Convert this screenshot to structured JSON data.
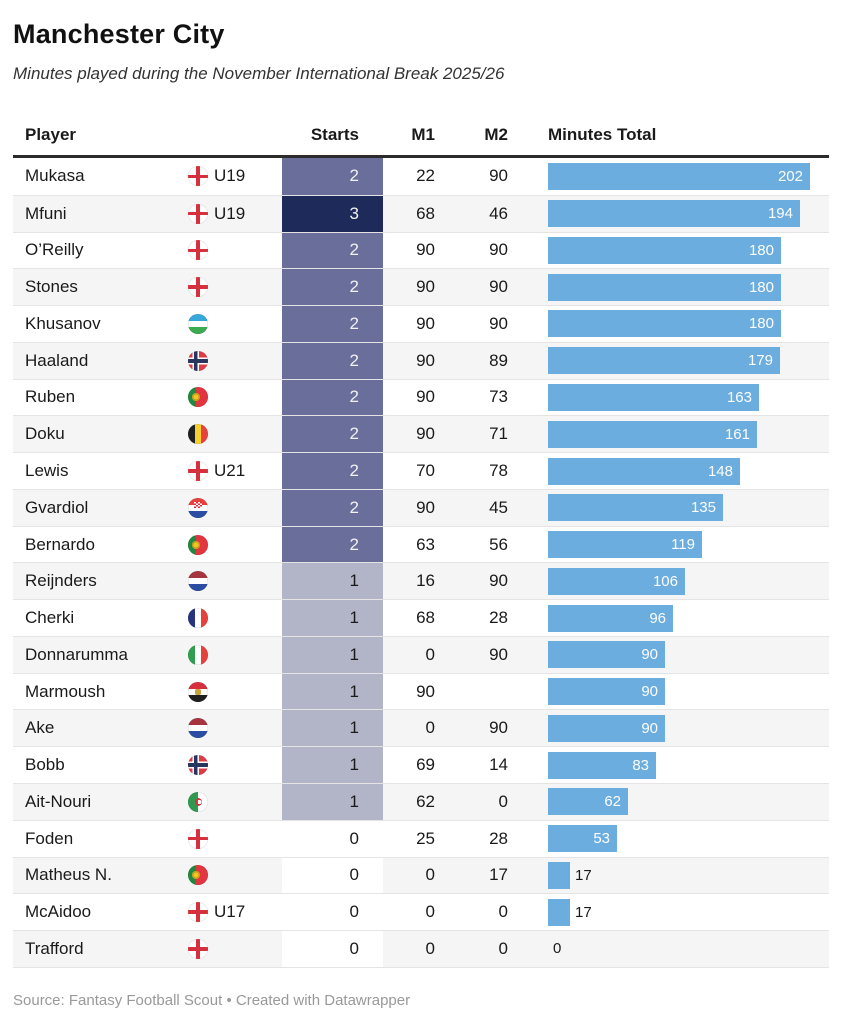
{
  "header": {
    "title": "Manchester City",
    "subtitle": "Minutes played during the November International Break 2025/26"
  },
  "columns": {
    "player": "Player",
    "starts": "Starts",
    "m1": "M1",
    "m2": "M2",
    "minutes_total": "Minutes Total"
  },
  "chart_data": {
    "type": "table",
    "title": "Manchester City",
    "subtitle": "Minutes played during the November International Break 2025/26",
    "columns": [
      "Player",
      "Starts",
      "M1",
      "M2",
      "Minutes Total"
    ],
    "bar_field": "total",
    "bar_max_value": 202,
    "bar_color": "#6badde",
    "row_stripe_color": "#f5f5f5",
    "starts_heatmap": {
      "0": "#ffffff",
      "1": "#b2b4c8",
      "2": "#696e9b",
      "3": "#1e2a5a"
    },
    "rows": [
      {
        "player": "Mukasa",
        "flag": "england",
        "youth": "U19",
        "starts": 2,
        "m1": "22",
        "m2": "90",
        "total": 202
      },
      {
        "player": "Mfuni",
        "flag": "england",
        "youth": "U19",
        "starts": 3,
        "m1": "68",
        "m2": "46",
        "total": 194
      },
      {
        "player": "O’Reilly",
        "flag": "england",
        "youth": "",
        "starts": 2,
        "m1": "90",
        "m2": "90",
        "total": 180
      },
      {
        "player": "Stones",
        "flag": "england",
        "youth": "",
        "starts": 2,
        "m1": "90",
        "m2": "90",
        "total": 180
      },
      {
        "player": "Khusanov",
        "flag": "uzbekistan",
        "youth": "",
        "starts": 2,
        "m1": "90",
        "m2": "90",
        "total": 180
      },
      {
        "player": "Haaland",
        "flag": "norway",
        "youth": "",
        "starts": 2,
        "m1": "90",
        "m2": "89",
        "total": 179
      },
      {
        "player": "Ruben",
        "flag": "portugal",
        "youth": "",
        "starts": 2,
        "m1": "90",
        "m2": "73",
        "total": 163
      },
      {
        "player": "Doku",
        "flag": "belgium",
        "youth": "",
        "starts": 2,
        "m1": "90",
        "m2": "71",
        "total": 161
      },
      {
        "player": "Lewis",
        "flag": "england",
        "youth": "U21",
        "starts": 2,
        "m1": "70",
        "m2": "78",
        "total": 148
      },
      {
        "player": "Gvardiol",
        "flag": "croatia",
        "youth": "",
        "starts": 2,
        "m1": "90",
        "m2": "45",
        "total": 135
      },
      {
        "player": "Bernardo",
        "flag": "portugal",
        "youth": "",
        "starts": 2,
        "m1": "63",
        "m2": "56",
        "total": 119
      },
      {
        "player": "Reijnders",
        "flag": "netherlands",
        "youth": "",
        "starts": 1,
        "m1": "16",
        "m2": "90",
        "total": 106
      },
      {
        "player": "Cherki",
        "flag": "france",
        "youth": "",
        "starts": 1,
        "m1": "68",
        "m2": "28",
        "total": 96
      },
      {
        "player": "Donnarumma",
        "flag": "italy",
        "youth": "",
        "starts": 1,
        "m1": "0",
        "m2": "90",
        "total": 90
      },
      {
        "player": "Marmoush",
        "flag": "egypt",
        "youth": "",
        "starts": 1,
        "m1": "90",
        "m2": "",
        "total": 90
      },
      {
        "player": "Ake",
        "flag": "netherlands",
        "youth": "",
        "starts": 1,
        "m1": "0",
        "m2": "90",
        "total": 90
      },
      {
        "player": "Bobb",
        "flag": "norway",
        "youth": "",
        "starts": 1,
        "m1": "69",
        "m2": "14",
        "total": 83
      },
      {
        "player": "Ait-Nouri",
        "flag": "algeria",
        "youth": "",
        "starts": 1,
        "m1": "62",
        "m2": "0",
        "total": 62
      },
      {
        "player": "Foden",
        "flag": "england",
        "youth": "",
        "starts": 0,
        "m1": "25",
        "m2": "28",
        "total": 53
      },
      {
        "player": "Matheus N.",
        "flag": "portugal",
        "youth": "",
        "starts": 0,
        "m1": "0",
        "m2": "17",
        "total": 17
      },
      {
        "player": "McAidoo",
        "flag": "england",
        "youth": "U17",
        "starts": 0,
        "m1": "0",
        "m2": "0",
        "total": 17
      },
      {
        "player": "Trafford",
        "flag": "england",
        "youth": "",
        "starts": 0,
        "m1": "0",
        "m2": "0",
        "total": 0
      }
    ]
  },
  "footer": {
    "source": "Source: Fantasy Football Scout • Created with Datawrapper"
  }
}
